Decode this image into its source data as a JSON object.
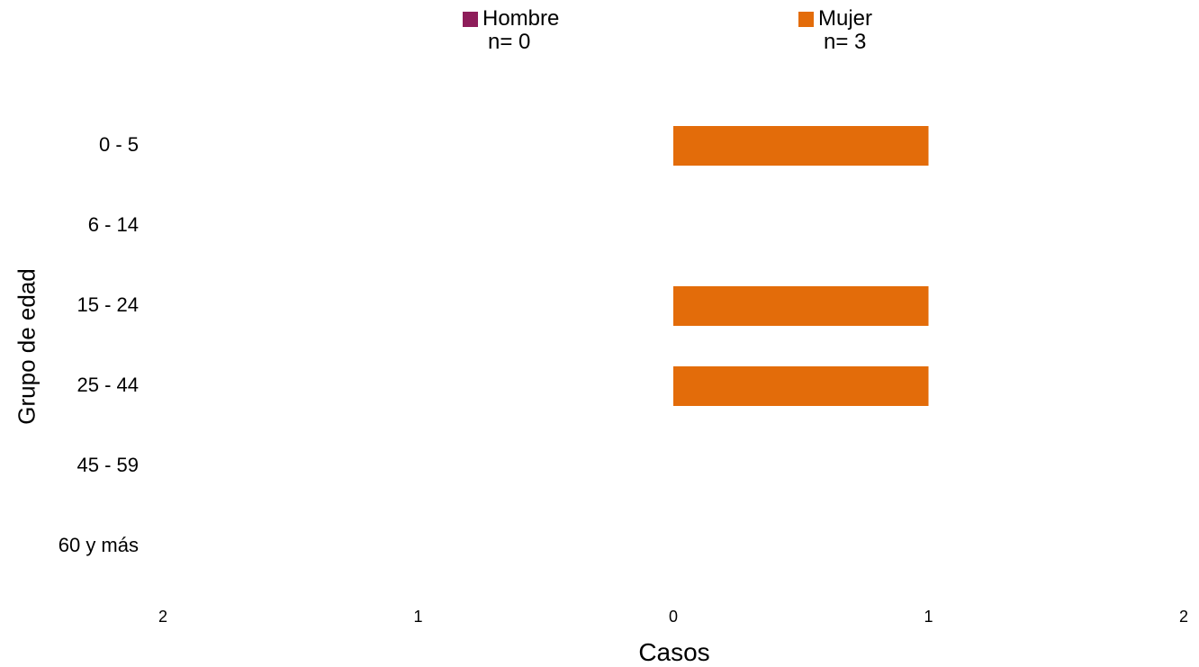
{
  "chart_data": {
    "type": "bar",
    "orientation": "horizontal-population-pyramid",
    "xlabel": "Casos",
    "ylabel": "Grupo de edad",
    "categories": [
      "0 - 5",
      "6 - 14",
      "15 - 24",
      "25 - 44",
      "45 - 59",
      "60 y más"
    ],
    "series": [
      {
        "name": "Hombre",
        "n_label": "n= 0",
        "color": "#8E1D5A",
        "side": "left",
        "values": [
          0,
          0,
          0,
          0,
          0,
          0
        ]
      },
      {
        "name": "Mujer",
        "n_label": "n= 3",
        "color": "#E36C0A",
        "side": "right",
        "values": [
          1,
          0,
          1,
          1,
          0,
          0
        ]
      }
    ],
    "xlim": [
      -2,
      2
    ],
    "x_ticks": [
      {
        "value": -2,
        "label": "2"
      },
      {
        "value": -1,
        "label": "1"
      },
      {
        "value": 0,
        "label": "0"
      },
      {
        "value": 1,
        "label": "1"
      },
      {
        "value": 2,
        "label": "2"
      }
    ],
    "grid": false,
    "legend_position": "top"
  }
}
